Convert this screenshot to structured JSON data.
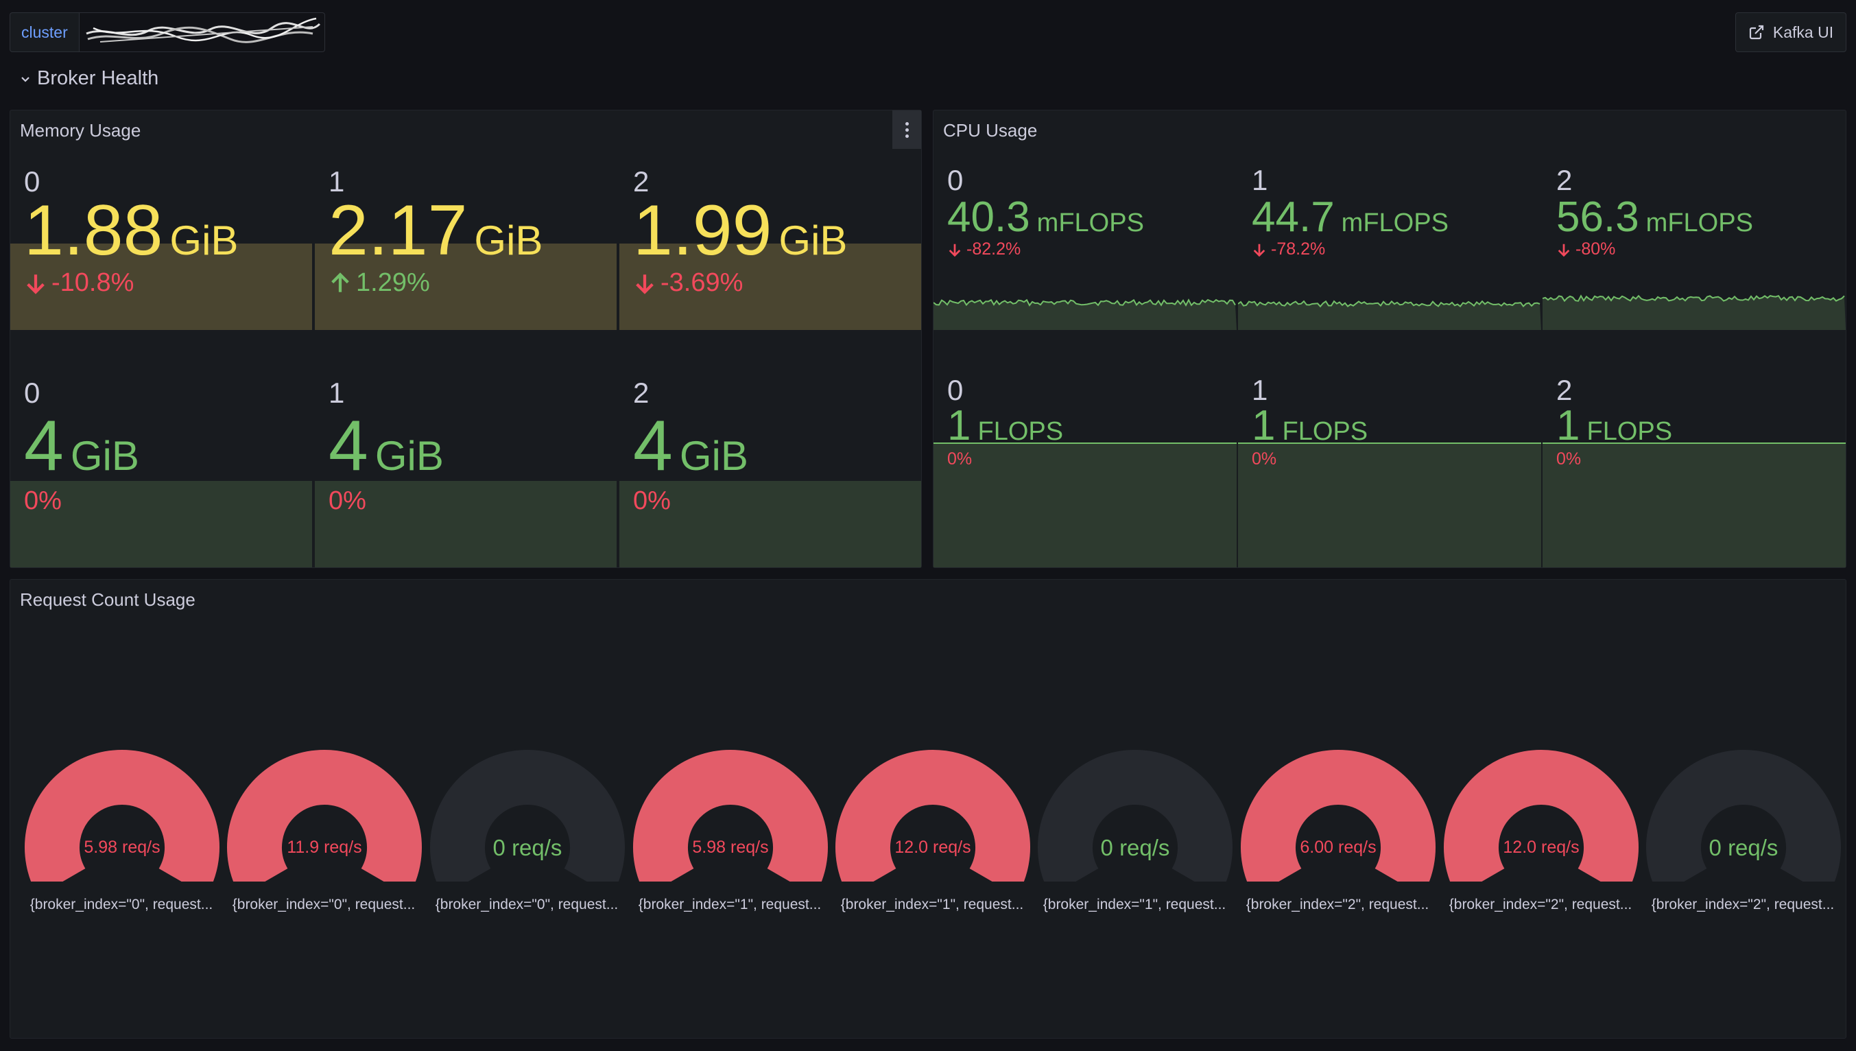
{
  "topbar": {
    "variable_label": "cluster",
    "variable_value": "",
    "kafka_button": "Kafka UI",
    "icons": {
      "external_link": "external-link-icon"
    }
  },
  "row": {
    "title": "Broker Health",
    "icon": "chevron-down-icon"
  },
  "memory_panel": {
    "title": "Memory Usage",
    "used": [
      {
        "label": "0",
        "value": "1.88",
        "unit": "GiB",
        "change": "-10.8%",
        "direction": "down"
      },
      {
        "label": "1",
        "value": "2.17",
        "unit": "GiB",
        "change": "1.29%",
        "direction": "up"
      },
      {
        "label": "2",
        "value": "1.99",
        "unit": "GiB",
        "change": "-3.69%",
        "direction": "down"
      }
    ],
    "total": [
      {
        "label": "0",
        "value": "4",
        "unit": "GiB",
        "change": "0%"
      },
      {
        "label": "1",
        "value": "4",
        "unit": "GiB",
        "change": "0%"
      },
      {
        "label": "2",
        "value": "4",
        "unit": "GiB",
        "change": "0%"
      }
    ]
  },
  "cpu_panel": {
    "title": "CPU Usage",
    "used": [
      {
        "label": "0",
        "value": "40.3",
        "unit": "mFLOPS",
        "change": "-82.2%",
        "direction": "down"
      },
      {
        "label": "1",
        "value": "44.7",
        "unit": "mFLOPS",
        "change": "-78.2%",
        "direction": "down"
      },
      {
        "label": "2",
        "value": "56.3",
        "unit": "mFLOPS",
        "change": "-80%",
        "direction": "down"
      }
    ],
    "total": [
      {
        "label": "0",
        "value": "1",
        "unit": "FLOPS",
        "change": "0%"
      },
      {
        "label": "1",
        "value": "1",
        "unit": "FLOPS",
        "change": "0%"
      },
      {
        "label": "2",
        "value": "1",
        "unit": "FLOPS",
        "change": "0%"
      }
    ]
  },
  "request_panel": {
    "title": "Request Count Usage",
    "gauges": [
      {
        "value": "5.98 req/s",
        "legend": "{broker_index=\"0\", request...",
        "level": 1.0
      },
      {
        "value": "11.9 req/s",
        "legend": "{broker_index=\"0\", request...",
        "level": 1.0
      },
      {
        "value": "0 req/s",
        "legend": "{broker_index=\"0\", request...",
        "level": 0
      },
      {
        "value": "5.98 req/s",
        "legend": "{broker_index=\"1\", request...",
        "level": 1.0
      },
      {
        "value": "12.0 req/s",
        "legend": "{broker_index=\"1\", request...",
        "level": 1.0
      },
      {
        "value": "0 req/s",
        "legend": "{broker_index=\"1\", request...",
        "level": 0
      },
      {
        "value": "6.00 req/s",
        "legend": "{broker_index=\"2\", request...",
        "level": 1.0
      },
      {
        "value": "12.0 req/s",
        "legend": "{broker_index=\"2\", request...",
        "level": 1.0
      },
      {
        "value": "0 req/s",
        "legend": "{broker_index=\"2\", request...",
        "level": 0
      }
    ]
  },
  "colors": {
    "background": "#111217",
    "panel": "#181b1f",
    "yellow": "#f6e05a",
    "green": "#73bf69",
    "red": "#f2495c"
  }
}
